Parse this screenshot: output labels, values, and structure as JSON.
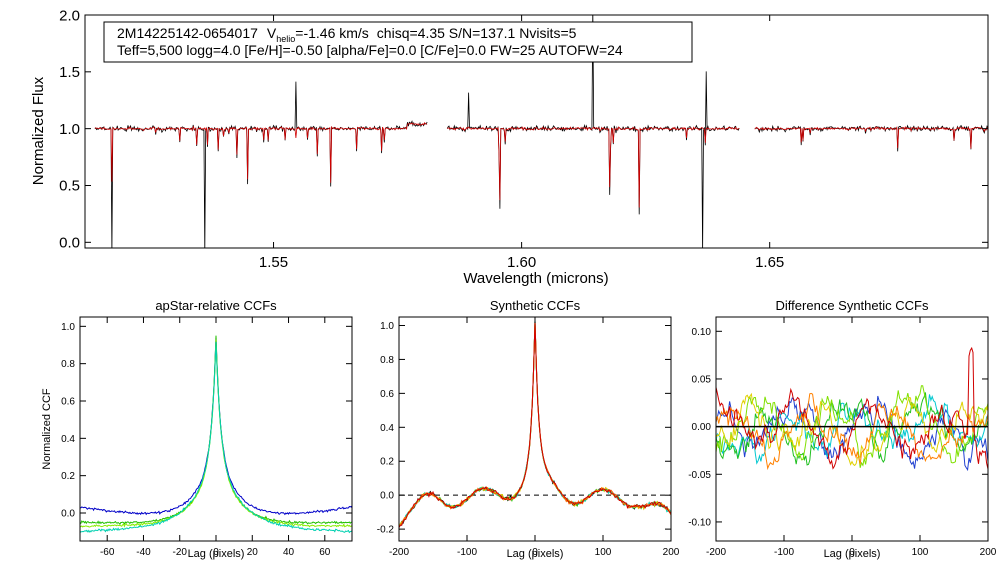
{
  "chart_data": [
    {
      "id": "spectrum",
      "type": "line",
      "title": "",
      "xlabel": "Wavelength (microns)",
      "ylabel": "Normalized Flux",
      "xlim": [
        1.512,
        1.694
      ],
      "ylim": [
        -0.05,
        2.0
      ],
      "xticks": [
        1.55,
        1.6,
        1.65
      ],
      "xtick_labels": [
        "1.55",
        "1.60",
        "1.65"
      ],
      "yticks": [
        0.0,
        0.5,
        1.0,
        1.5,
        2.0
      ],
      "ytick_labels": [
        "0.0",
        "0.5",
        "1.0",
        "1.5",
        "2.0"
      ],
      "chips": [
        [
          1.514,
          1.581
        ],
        [
          1.585,
          1.644
        ],
        [
          1.647,
          1.696
        ]
      ],
      "series": [
        {
          "name": "observed",
          "color": "#000000"
        },
        {
          "name": "model",
          "color": "#d00000"
        }
      ],
      "annotation": {
        "star": "2M14225142-0654017",
        "vhelio_prefix": "V",
        "vhelio_sub": "helio",
        "vhelio_value": "=-1.46 km/s",
        "rest": "chisq=4.35  S/N=137.1  Nvisits=5",
        "line2": "Teff=5,500 logg=4.0 [Fe/H]=-0.50 [alpha/Fe]=0.0 [C/Fe]=0.0 FW=25 AUTOFW=24"
      }
    },
    {
      "id": "apstar-ccf",
      "type": "line",
      "title": "apStar-relative CCFs",
      "xlabel": "Lag (pixels)",
      "ylabel": "Normalized CCF",
      "xlim": [
        -75,
        75
      ],
      "ylim": [
        -0.15,
        1.05
      ],
      "xticks": [
        -60,
        -40,
        -20,
        0,
        20,
        40,
        60
      ],
      "xtick_labels": [
        "-60",
        "-40",
        "-20",
        "0",
        "20",
        "40",
        "60"
      ],
      "yticks": [
        0.0,
        0.2,
        0.4,
        0.6,
        0.8,
        1.0
      ],
      "ytick_labels": [
        "0.0",
        "0.2",
        "0.4",
        "0.6",
        "0.8",
        "1.0"
      ],
      "series": [
        {
          "name": "blue",
          "color": "#0000c8",
          "peak": 0.98,
          "width": 12,
          "tail": 0.06
        },
        {
          "name": "green",
          "color": "#22c000",
          "peak": 1.0,
          "width": 11,
          "tail": -0.02
        },
        {
          "name": "lime",
          "color": "#88ee00",
          "peak": 0.96,
          "width": 11,
          "tail": -0.04
        },
        {
          "name": "cyan",
          "color": "#00d0b0",
          "peak": 0.95,
          "width": 12,
          "tail": -0.07
        }
      ]
    },
    {
      "id": "synthetic-ccf",
      "type": "line",
      "title": "Synthetic CCFs",
      "xlabel": "Lag (pixels)",
      "ylabel": "",
      "xlim": [
        -200,
        200
      ],
      "ylim": [
        -0.27,
        1.05
      ],
      "xticks": [
        -200,
        -100,
        0,
        100,
        200
      ],
      "xtick_labels": [
        "-200",
        "-100",
        "0",
        "100",
        "200"
      ],
      "yticks": [
        -0.2,
        0.0,
        0.2,
        0.4,
        0.6,
        0.8,
        1.0
      ],
      "ytick_labels": [
        "-0.2",
        "0.0",
        "0.2",
        "0.4",
        "0.6",
        "0.8",
        "1.0"
      ],
      "zero_line": "dashed",
      "series": [
        {
          "name": "black",
          "color": "#000000"
        },
        {
          "name": "green",
          "color": "#22c000"
        },
        {
          "name": "cyan",
          "color": "#00d0b0"
        },
        {
          "name": "yellow",
          "color": "#e0c000"
        },
        {
          "name": "orange",
          "color": "#ff6000"
        },
        {
          "name": "red",
          "color": "#d00000"
        }
      ]
    },
    {
      "id": "difference-ccf",
      "type": "line",
      "title": "Difference Synthetic CCFs",
      "xlabel": "Lag (pixels)",
      "ylabel": "",
      "xlim": [
        -200,
        200
      ],
      "ylim": [
        -0.12,
        0.115
      ],
      "xticks": [
        -200,
        -100,
        0,
        100,
        200
      ],
      "xtick_labels": [
        "-200",
        "-100",
        "0",
        "100",
        "200"
      ],
      "yticks": [
        -0.1,
        -0.05,
        0.0,
        0.05,
        0.1
      ],
      "ytick_labels": [
        "-0.10",
        "-0.05",
        "0.00",
        "0.05",
        "0.10"
      ],
      "zero_line": "solid",
      "series": [
        {
          "name": "blue",
          "color": "#2040d0"
        },
        {
          "name": "cyan",
          "color": "#00c8d0"
        },
        {
          "name": "green",
          "color": "#20c020"
        },
        {
          "name": "lime",
          "color": "#80e000"
        },
        {
          "name": "yellow",
          "color": "#e0d000"
        },
        {
          "name": "orange",
          "color": "#ff8000"
        },
        {
          "name": "red",
          "color": "#d00000"
        }
      ]
    }
  ]
}
